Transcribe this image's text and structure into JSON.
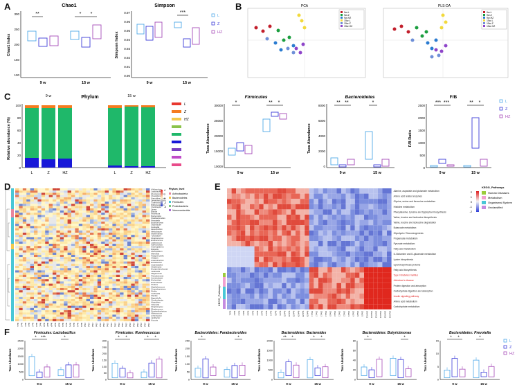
{
  "panels": {
    "A": {
      "label": "A",
      "chao1": {
        "title": "Chao1",
        "ylabel": "Chao1 Index",
        "yticks": [
          "300",
          "250",
          "200",
          "150",
          "100"
        ],
        "groups": [
          "9 w",
          "15 w"
        ],
        "sig": [
          "**",
          "*",
          "*"
        ]
      },
      "simpson": {
        "title": "Simpson",
        "ylabel": "Simpson Index",
        "yticks": [
          "0.97",
          "0.96",
          "0.95",
          "0.94",
          "0.93",
          "0.92",
          "0.91",
          "0.90"
        ],
        "groups": [
          "9 w",
          "15 w"
        ],
        "sig": [
          "***"
        ]
      },
      "legend": [
        "L",
        "Z",
        "HZ"
      ]
    },
    "B": {
      "label": "B",
      "pca_title": "PCA",
      "plsda_title": "PLS-DA",
      "pca_legend": [
        "9w-L",
        "9w-Z",
        "9w-HZ",
        "15w-L",
        "15w-Z",
        "15w-HZ"
      ]
    },
    "C": {
      "label": "C",
      "title": "Phylum",
      "ylabel": "Relative abundance (%)",
      "yticks": [
        "100",
        "80",
        "60",
        "40",
        "20",
        "0"
      ],
      "week_labels": [
        "9 w",
        "15 w"
      ],
      "xlabels": [
        "L",
        "Z",
        "HZ",
        "L",
        "Z",
        "HZ"
      ],
      "legend": [
        "L",
        "Z",
        "HZ"
      ],
      "firmicutes": {
        "title": "Firmicutes",
        "ylabel": "Taxa Abundance",
        "yticks": [
          "30000",
          "25000",
          "20000",
          "15000",
          "10000"
        ],
        "groups": [
          "9 w",
          "15 w"
        ],
        "sig": [
          "*",
          "**",
          "*"
        ]
      },
      "bacteroidetes": {
        "title": "Bacteroidetes",
        "ylabel": "Taxa Abundance",
        "yticks": [
          "8000",
          "6000",
          "4000",
          "2000",
          "0"
        ],
        "groups": [
          "9 w",
          "15 w"
        ],
        "sig": [
          "**",
          "**",
          "*"
        ]
      },
      "fb": {
        "title": "F/B",
        "ylabel": "F/B Ratio",
        "yticks": [
          "2500",
          "2000",
          "1500",
          "1000",
          "500",
          "0"
        ],
        "groups": [
          "9 w",
          "15 w"
        ],
        "sig": [
          "***",
          "***",
          "**",
          "*"
        ]
      }
    },
    "D": {
      "label": "D",
      "legend_title": "Phylum_level",
      "legend_items": [
        "Actinobacteria",
        "Bacteroidetes",
        "Firmicutes",
        "Proteobacteria",
        "Verrucomicrobia"
      ],
      "scale": [
        "4",
        "2",
        "0",
        "-2",
        "-4"
      ],
      "genera": [
        "Allobaculum",
        "Lactobacillus",
        "Ruminococcus",
        "Clostridium",
        "Faecalibacterium",
        "Dehalobacterium",
        "Coprococcus",
        "Bifidobacterium",
        "Oscillospira",
        "Dorea",
        "Blautia",
        "Roseburia",
        "Bacteroides",
        "Parabacteroides",
        "Prevotella",
        "Butyricimonas",
        "Odoribacter",
        "Sutterella",
        "Desulfovibrio",
        "Helicobacter",
        "Akkermansia",
        "Turicibacter",
        "Streptococcus",
        "Enterococcus",
        "Lactococcus",
        "Adlercreutzia",
        "Anaeroplasma",
        "Bilophila",
        "Mucispirillum",
        "Rikenella",
        "Paraprevotella",
        "Alistipes",
        "Anaerotruncus",
        "Eubacterium",
        "Coprobacillus",
        "Holdemania",
        "Erysipelotrichaceae",
        "Veillonella",
        "Megamonas",
        "Pseudomonas",
        "Acinetobacter",
        "Escherichia",
        "Enterobacter",
        "Proteus",
        "Staphylococcus",
        "Corynebacterium",
        "Rothia",
        "Collinsella",
        "Slackia",
        "Eggerthella",
        "Gordonibacter",
        "Atopobium",
        "Olsenella",
        "Streptomyces",
        "Rhodococcus",
        "Propionibacterium",
        "Micrococcus",
        "Arthrobacter",
        "Janibacter",
        "Kocuria"
      ]
    },
    "E": {
      "label": "E",
      "legend_title": "KEGG_Pathways",
      "legend_items": [
        "Human Diseases",
        "Metabolism",
        "Organismal System",
        "Unclassified"
      ],
      "scale": [
        "2",
        "1",
        "0",
        "-1",
        "-2"
      ],
      "side_label": "KEGG_Pathways",
      "pathways": [
        "Alanine, aspartate and glutamate metabolism",
        "Amino acid related enzymes",
        "Glycine, serine and threonine metabolism",
        "Histidine metabolism",
        "Phenylalanine, tyrosine and tryptophan biosynthesis",
        "Valine, leucine and isoleucine biosynthesis",
        "Valine, leucine and isoleucine degradation",
        "Butanoate metabolism",
        "Glycolysis / Gluconeogenesis",
        "Propanoate metabolism",
        "Pyruvate metabolism",
        "Fatty acid metabolism",
        "D-Glutamine and D-glutamate metabolism",
        "Lysine biosynthesis",
        "Lipid biosynthesis proteins",
        "Fatty acid biosynthesis",
        "Type II diabetes mellitus",
        "Alzheimer's disease",
        "Protein digestion and absorption",
        "Carbohydrate digestion and absorption",
        "Insulin signaling pathway",
        "Amino acid metabolism",
        "Carbohydrate metabolism"
      ],
      "samples": [
        "9wL1",
        "9wL2",
        "9wL3",
        "9wL4",
        "9wL5",
        "9wL6",
        "9wZ1",
        "9wZ2",
        "9wZ3",
        "9wZ4",
        "9wZ5",
        "9wZ6",
        "9wHZ1",
        "9wHZ2",
        "9wHZ3",
        "9wHZ4",
        "9wHZ5",
        "9wHZ6",
        "15wL1",
        "15wL2",
        "15wL3",
        "15wL4",
        "15wL5",
        "15wL6",
        "15wZ1",
        "15wZ2",
        "15wZ3",
        "15wZ4",
        "15wZ5",
        "15wZ6",
        "15wHZ1",
        "15wHZ2",
        "15wHZ3",
        "15wHZ4",
        "15wHZ5",
        "15wHZ6"
      ]
    },
    "F": {
      "label": "F",
      "plots": [
        {
          "phylum": "Firmicutes",
          "genus": "Lactobacillus",
          "yticks": [
            "2500",
            "2000",
            "1500",
            "1000",
            "500",
            "0"
          ],
          "sig": [
            "*",
            "***",
            "*"
          ]
        },
        {
          "phylum": "Firmicutes",
          "genus": "Ruminococcus",
          "yticks": [
            "300",
            "250",
            "200",
            "150",
            "100",
            "50",
            "0"
          ],
          "sig": [
            "*",
            "*",
            "*",
            "*"
          ]
        },
        {
          "phylum": "Bacteroidetes",
          "genus": "Parabacteroides",
          "yticks": [
            "250",
            "200",
            "150",
            "100",
            "50",
            "0"
          ],
          "sig": [
            "*",
            "*"
          ]
        },
        {
          "phylum": "Bacteroidetes",
          "genus": "Bacteroides",
          "yticks": [
            "2000",
            "1500",
            "1000",
            "500",
            "0"
          ],
          "sig": [
            "**",
            "*",
            "*",
            "*"
          ]
        },
        {
          "phylum": "Bacteroidetes",
          "genus": "Butyricimonas",
          "yticks": [
            "80",
            "60",
            "40",
            "20",
            "0"
          ],
          "sig": [
            "*",
            "*"
          ]
        },
        {
          "phylum": "Bacteroidetes",
          "genus": "Prevotella",
          "yticks": [
            "15",
            "10",
            "5",
            "0"
          ],
          "sig": [
            "*",
            "*",
            "*"
          ]
        }
      ],
      "ylabel": "Taxa Abundance",
      "groups": [
        "9 w",
        "15 w"
      ],
      "legend": [
        "L",
        "Z",
        "HZ"
      ]
    }
  },
  "colors": {
    "L": "#4fa8e8",
    "Z": "#3a3ad8",
    "HZ": "#a64ab8",
    "red": "#e8382f",
    "blue": "#3a57c8"
  }
}
